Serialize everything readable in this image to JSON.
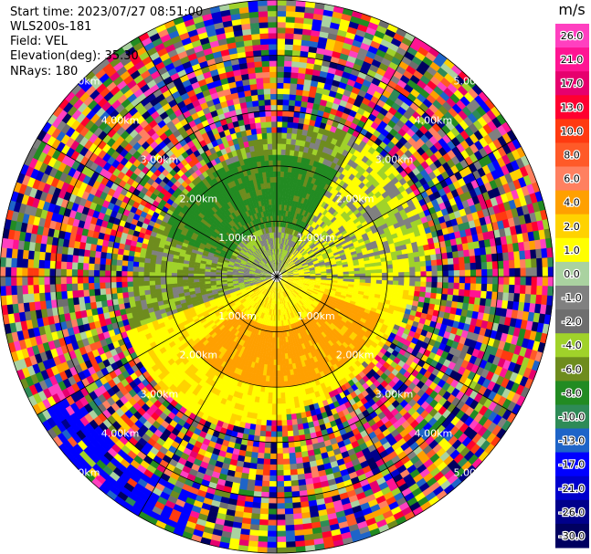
{
  "header": {
    "start_time": "Start time: 2023/07/27 08:51:00",
    "site": "WLS200s-181",
    "field": "Field: VEL",
    "elevation": "Elevation(deg): 35.30",
    "nrays": "NRays: 180"
  },
  "chart_data": {
    "type": "heatmap",
    "projection": "polar-ppi",
    "field": "VEL",
    "max_range_km": 5.0,
    "range_ring_labels": [
      "1.00km",
      "2.00km",
      "3.00km",
      "4.00km",
      "5.00km"
    ],
    "range_rings_km": [
      1,
      2,
      3,
      4,
      5
    ],
    "spoke_angles_deg": [
      0,
      30,
      60,
      90,
      120,
      150,
      180,
      210,
      240,
      270,
      300,
      330
    ],
    "colorbar": {
      "unit": "m/s",
      "ticks": [
        "26.0",
        "21.0",
        "17.0",
        "13.0",
        "10.0",
        "8.0",
        "6.0",
        "4.0",
        "2.0",
        "1.0",
        "0.0",
        "-1.0",
        "-2.0",
        "-4.0",
        "-6.0",
        "-8.0",
        "-10.0",
        "-13.0",
        "-17.0",
        "-21.0",
        "-26.0",
        "-30.0"
      ],
      "colors": [
        "#ff40c0",
        "#ff1493",
        "#e6006e",
        "#ff0030",
        "#ff3a10",
        "#ff5a28",
        "#ff8060",
        "#ffa000",
        "#ffd200",
        "#ffff00",
        "#aad2a0",
        "#808080",
        "#6e6e6e",
        "#a0d22a",
        "#6e8c1e",
        "#228b22",
        "#2e8b57",
        "#1e64c8",
        "#0000ff",
        "#0000cc",
        "#00008b",
        "#000060"
      ]
    }
  }
}
